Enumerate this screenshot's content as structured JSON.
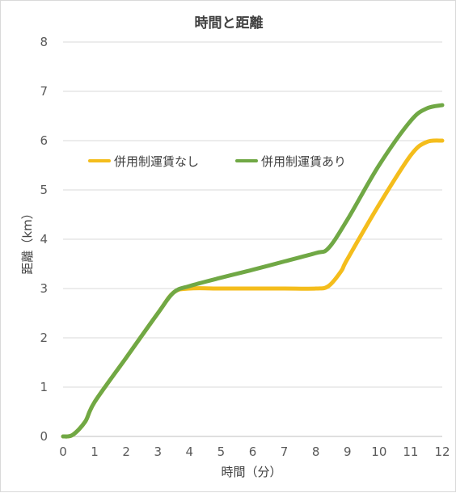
{
  "chart_data": {
    "type": "line",
    "title": "時間と距離",
    "xlabel": "時間（分）",
    "ylabel": "距離（km）",
    "xlim": [
      0,
      12
    ],
    "ylim": [
      0,
      8
    ],
    "x_ticks": [
      "0",
      "1",
      "2",
      "3",
      "4",
      "5",
      "6",
      "7",
      "8",
      "9",
      "10",
      "11",
      "12"
    ],
    "y_ticks": [
      "0",
      "1",
      "2",
      "3",
      "4",
      "5",
      "6",
      "7",
      "8"
    ],
    "grid": "horizontal",
    "legend_position": "inside-top-left",
    "smooth": true,
    "series": [
      {
        "name": "併用制運賃なし",
        "color": "#f4bd1c",
        "points": [
          [
            0,
            0
          ],
          [
            0.3,
            0.03
          ],
          [
            0.7,
            0.3
          ],
          [
            1,
            0.7
          ],
          [
            2,
            1.6
          ],
          [
            3,
            2.5
          ],
          [
            3.5,
            2.92
          ],
          [
            4,
            3.0
          ],
          [
            5,
            3.0
          ],
          [
            6,
            3.0
          ],
          [
            7,
            3.0
          ],
          [
            8,
            3.0
          ],
          [
            8.4,
            3.05
          ],
          [
            8.8,
            3.35
          ],
          [
            9,
            3.6
          ],
          [
            10,
            4.7
          ],
          [
            11,
            5.7
          ],
          [
            11.5,
            5.97
          ],
          [
            12,
            6.0
          ]
        ]
      },
      {
        "name": "併用制運賃あり",
        "color": "#70a845",
        "points": [
          [
            0,
            0
          ],
          [
            0.3,
            0.03
          ],
          [
            0.7,
            0.3
          ],
          [
            1,
            0.7
          ],
          [
            2,
            1.6
          ],
          [
            3,
            2.5
          ],
          [
            3.5,
            2.92
          ],
          [
            4,
            3.05
          ],
          [
            5,
            3.22
          ],
          [
            6,
            3.38
          ],
          [
            7,
            3.55
          ],
          [
            8,
            3.72
          ],
          [
            8.4,
            3.82
          ],
          [
            9,
            4.4
          ],
          [
            10,
            5.5
          ],
          [
            11,
            6.4
          ],
          [
            11.5,
            6.65
          ],
          [
            12,
            6.72
          ]
        ]
      }
    ]
  }
}
